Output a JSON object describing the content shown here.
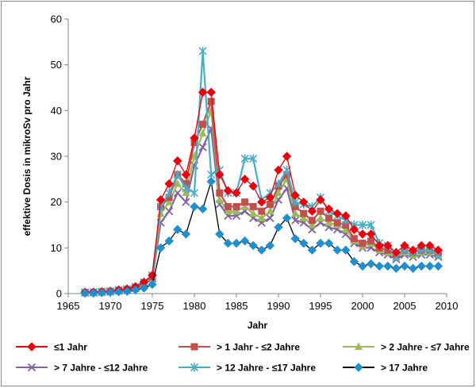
{
  "chart_data": {
    "type": "line",
    "title": "",
    "xlabel": "Jahr",
    "ylabel": "effektive Dosis in mikroSv pro Jahr",
    "xlim": [
      1965,
      2010
    ],
    "ylim": [
      0,
      60
    ],
    "x_ticks": [
      1965,
      1970,
      1975,
      1980,
      1985,
      1990,
      1995,
      2000,
      2005,
      2010
    ],
    "y_ticks": [
      0,
      10,
      20,
      30,
      40,
      50,
      60
    ],
    "grid": false,
    "legend_position": "bottom",
    "x": [
      1967,
      1968,
      1969,
      1970,
      1971,
      1972,
      1973,
      1974,
      1975,
      1976,
      1977,
      1978,
      1979,
      1980,
      1981,
      1982,
      1983,
      1984,
      1985,
      1986,
      1987,
      1988,
      1989,
      1990,
      1991,
      1992,
      1993,
      1994,
      1995,
      1996,
      1997,
      1998,
      1999,
      2000,
      2001,
      2002,
      2003,
      2004,
      2005,
      2006,
      2007,
      2008,
      2009
    ],
    "series": [
      {
        "name": "≤1 Jahr",
        "color": "#e8000b",
        "marker": "diamond",
        "values": [
          0.3,
          0.3,
          0.4,
          0.5,
          0.8,
          1.0,
          1.5,
          2.5,
          4.0,
          20.5,
          24.0,
          29.0,
          26.0,
          34.0,
          44.0,
          44.0,
          26.0,
          22.5,
          22.0,
          25.0,
          23.5,
          20.0,
          21.0,
          27.0,
          30.0,
          21.5,
          20.0,
          18.0,
          20.5,
          18.5,
          17.5,
          17.0,
          14.0,
          13.0,
          13.0,
          10.5,
          10.5,
          9.0,
          10.5,
          9.5,
          10.5,
          10.5,
          9.5
        ]
      },
      {
        "name": "> 1 Jahr - ≤2 Jahre",
        "color": "#c0504d",
        "marker": "square",
        "values": [
          0.2,
          0.3,
          0.4,
          0.5,
          0.7,
          0.9,
          1.4,
          2.3,
          3.7,
          19.0,
          21.0,
          26.0,
          24.0,
          33.0,
          37.0,
          42.0,
          22.0,
          19.0,
          19.0,
          20.0,
          19.0,
          18.0,
          19.5,
          23.5,
          26.0,
          19.0,
          17.5,
          16.0,
          18.0,
          16.5,
          15.5,
          15.0,
          12.0,
          11.0,
          11.5,
          10.0,
          9.5,
          8.5,
          9.5,
          9.0,
          9.5,
          9.5,
          9.0
        ]
      },
      {
        "name": "> 2 Jahre - ≤7 Jahre",
        "color": "#9bbb59",
        "marker": "triangle",
        "values": [
          0.2,
          0.3,
          0.3,
          0.4,
          0.6,
          0.8,
          1.3,
          2.2,
          3.5,
          17.5,
          20.0,
          24.0,
          22.0,
          30.0,
          35.0,
          40.0,
          20.5,
          18.0,
          18.0,
          19.0,
          17.5,
          16.5,
          18.0,
          22.0,
          25.0,
          17.5,
          16.5,
          15.0,
          16.5,
          15.5,
          15.0,
          14.0,
          11.5,
          10.5,
          11.0,
          9.5,
          9.0,
          8.0,
          9.0,
          8.5,
          9.0,
          9.0,
          8.5
        ]
      },
      {
        "name": "> 7 Jahre - ≤12 Jahre",
        "color": "#8064a2",
        "marker": "x",
        "values": [
          0.2,
          0.2,
          0.3,
          0.4,
          0.6,
          0.8,
          1.2,
          2.0,
          3.3,
          15.5,
          18.0,
          22.0,
          20.0,
          28.0,
          32.0,
          36.0,
          19.5,
          17.0,
          17.0,
          18.0,
          16.5,
          15.5,
          16.5,
          20.5,
          23.0,
          16.0,
          15.5,
          14.0,
          15.5,
          14.5,
          14.0,
          13.0,
          11.0,
          10.0,
          10.0,
          9.0,
          8.5,
          7.5,
          8.5,
          8.0,
          8.5,
          8.5,
          8.0
        ]
      },
      {
        "name": "> 12 Jahre - ≤17 Jahre",
        "color": "#4bacc6",
        "marker": "star",
        "values": [
          0.3,
          0.3,
          0.4,
          0.5,
          0.8,
          1.0,
          1.5,
          2.5,
          4.0,
          19.0,
          22.0,
          26.0,
          23.0,
          22.0,
          53.0,
          26.0,
          27.0,
          22.0,
          22.0,
          29.5,
          29.5,
          20.5,
          22.0,
          24.0,
          27.0,
          20.0,
          19.5,
          19.0,
          21.0,
          18.0,
          17.0,
          16.0,
          15.0,
          15.0,
          15.0,
          11.0,
          10.5,
          8.0,
          9.5,
          9.0,
          9.5,
          9.5,
          8.5
        ]
      },
      {
        "name": "> 17 Jahre",
        "color": "#1f8fd0",
        "marker": "diamond",
        "values": [
          0.1,
          0.1,
          0.2,
          0.3,
          0.4,
          0.5,
          0.8,
          1.2,
          2.0,
          10.0,
          11.5,
          14.0,
          13.0,
          19.0,
          18.5,
          24.5,
          13.0,
          11.0,
          11.0,
          11.5,
          10.5,
          9.5,
          10.5,
          14.5,
          16.5,
          12.0,
          11.0,
          9.5,
          11.0,
          11.0,
          9.5,
          9.5,
          7.0,
          6.0,
          6.5,
          6.0,
          6.0,
          5.5,
          6.0,
          5.5,
          6.0,
          6.0,
          6.0
        ]
      }
    ]
  }
}
